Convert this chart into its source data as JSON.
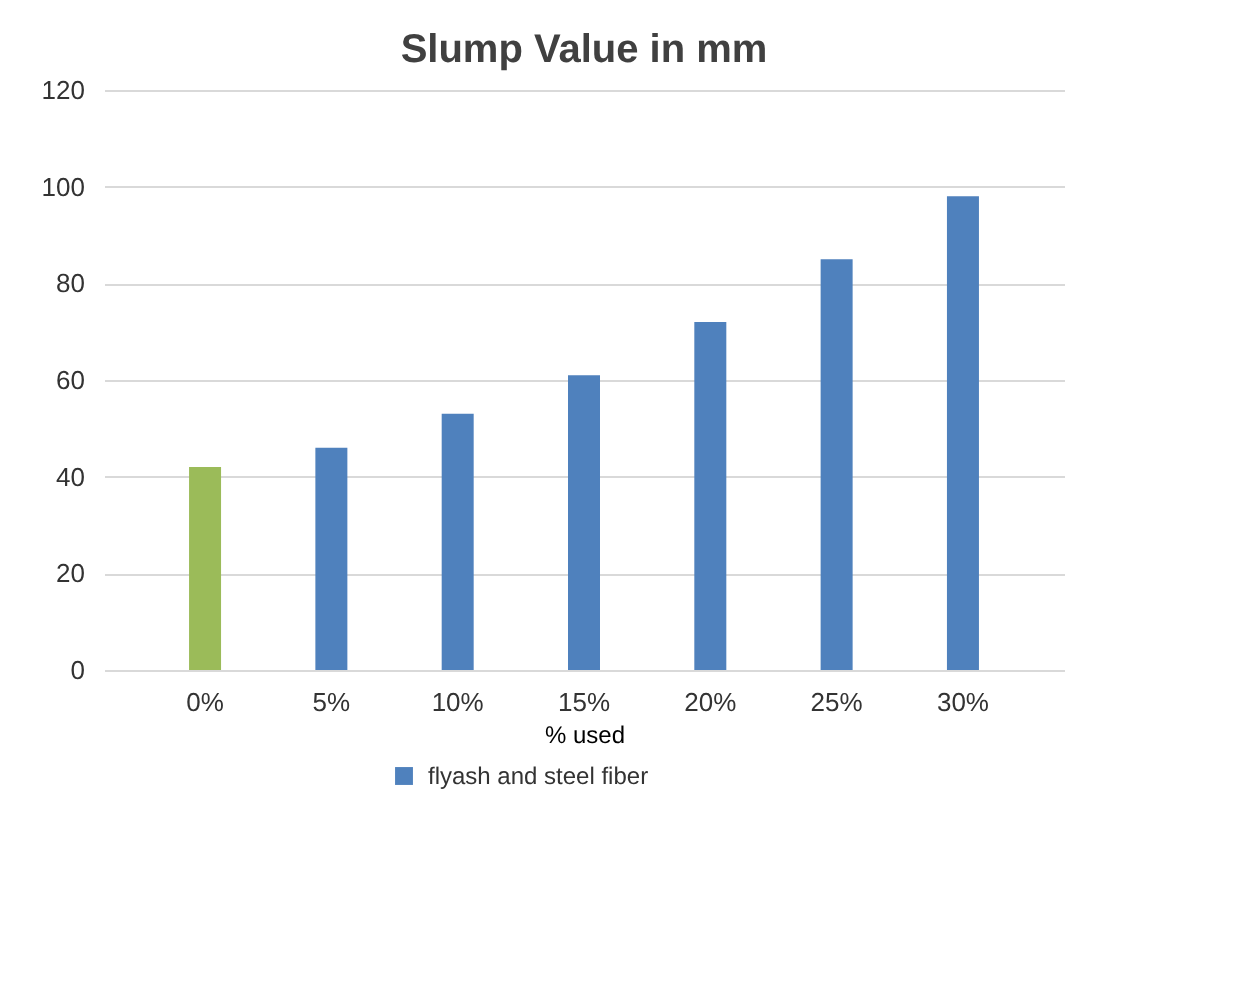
{
  "chart_data": {
    "type": "bar",
    "title": "Slump Value in mm",
    "xlabel": "% used",
    "categories": [
      "0%",
      "5%",
      "10%",
      "15%",
      "20%",
      "25%",
      "30%"
    ],
    "series": [
      {
        "name": "flyash and steel fiber",
        "color": "#4f81bd",
        "colors": [
          "#9bbb59",
          "#4f81bd",
          "#4f81bd",
          "#4f81bd",
          "#4f81bd",
          "#4f81bd",
          "#4f81bd"
        ],
        "values": [
          42,
          46,
          53,
          61,
          72,
          85,
          98
        ]
      }
    ],
    "ylim": [
      0,
      120
    ],
    "yticks": [
      0,
      20,
      40,
      60,
      80,
      100,
      120
    ],
    "grid": "y",
    "legend": "bottom"
  }
}
